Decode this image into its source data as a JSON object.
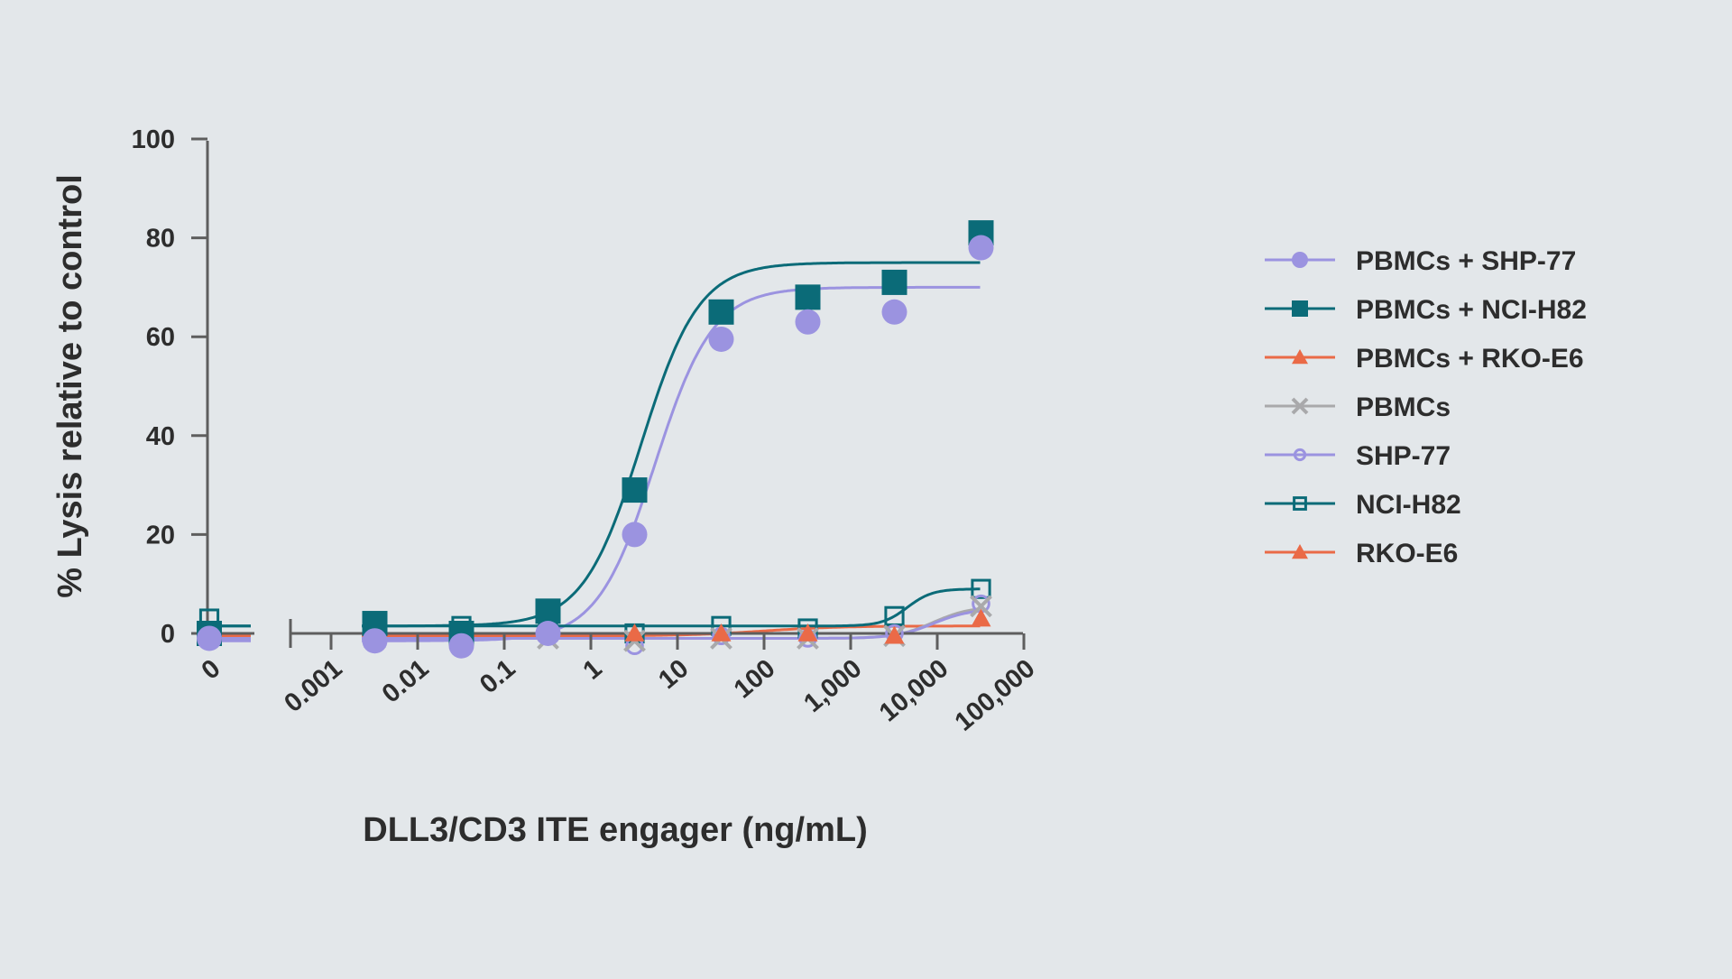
{
  "chart_data": {
    "type": "scatter",
    "title": "",
    "xlabel": "DLL3/CD3 ITE engager (ng/mL)",
    "ylabel": "% Lysis relative to control",
    "x_scale": "log",
    "x_tick_labels": [
      "0",
      "0.001",
      "0.01",
      "0.1",
      "1",
      "10",
      "100",
      "1,000",
      "10,000",
      "100,000"
    ],
    "y_ticks": [
      0,
      20,
      40,
      60,
      80,
      100
    ],
    "ylim": [
      0,
      100
    ],
    "legend_position": "right",
    "series": [
      {
        "name": "PBMCs + SHP-77",
        "color": "#9b93e0",
        "marker": "circle-filled",
        "zero_value": -1,
        "x": [
          0.0032,
          0.032,
          0.32,
          3.2,
          32,
          320,
          3200,
          32000
        ],
        "y": [
          -1.5,
          -2.5,
          0,
          20,
          59.5,
          63,
          65,
          78
        ],
        "fit": {
          "bottom": -1.5,
          "top": 70,
          "ec50": 5.5,
          "hill": 1.3
        }
      },
      {
        "name": "PBMCs + NCI-H82",
        "color": "#0b6b78",
        "marker": "square-filled",
        "zero_value": 0,
        "x": [
          0.0032,
          0.032,
          0.32,
          3.2,
          32,
          320,
          3200,
          32000
        ],
        "y": [
          2,
          0,
          4.5,
          29,
          65,
          68,
          71,
          81
        ],
        "fit": {
          "bottom": 1.5,
          "top": 75,
          "ec50": 3.8,
          "hill": 1.3
        }
      },
      {
        "name": "PBMCs + RKO-E6",
        "color": "#ea6a47",
        "marker": "triangle-filled",
        "zero_value": -0.5,
        "x": [
          0.0032,
          0.032,
          0.32,
          3.2,
          32,
          320,
          3200,
          32000
        ],
        "y": [
          -0.5,
          -0.5,
          0,
          0,
          0,
          0,
          -0.5,
          3
        ],
        "fit": {
          "bottom": -0.5,
          "top": 1.5,
          "ec50": 100,
          "hill": 1
        }
      },
      {
        "name": "PBMCs",
        "color": "#a9a9ab",
        "marker": "x",
        "zero_value": -0.5,
        "x": [
          0.0032,
          0.032,
          0.32,
          3.2,
          32,
          320,
          3200,
          32000
        ],
        "y": [
          -1,
          -1,
          -1,
          -1.5,
          -1,
          -1,
          -0.5,
          5.5
        ],
        "fit": {
          "bottom": -1,
          "top": 5.5,
          "ec50": 9000,
          "hill": 2
        }
      },
      {
        "name": "SHP-77",
        "color": "#9b93e0",
        "marker": "circle-open",
        "zero_value": -0.5,
        "x": [
          0.0032,
          0.032,
          0.32,
          3.2,
          32,
          320,
          3200,
          32000
        ],
        "y": [
          -0.5,
          -1,
          -0.5,
          -2.5,
          -0.5,
          -1,
          0,
          6
        ],
        "fit": {
          "bottom": -1,
          "top": 5,
          "ec50": 9000,
          "hill": 2
        }
      },
      {
        "name": "NCI-H82",
        "color": "#0b6b78",
        "marker": "square-open",
        "zero_value": 3,
        "x": [
          0.0032,
          0.032,
          0.32,
          3.2,
          32,
          320,
          3200,
          32000
        ],
        "y": [
          1,
          1.5,
          1,
          0,
          1.5,
          1,
          3.5,
          9
        ],
        "fit": {
          "bottom": 1.5,
          "top": 9,
          "ec50": 4500,
          "hill": 3
        }
      },
      {
        "name": "RKO-E6",
        "color": "#ea6a47",
        "marker": "triangle-filled",
        "zero_value": -0.5,
        "x": [],
        "y": [],
        "fit": null
      }
    ]
  }
}
